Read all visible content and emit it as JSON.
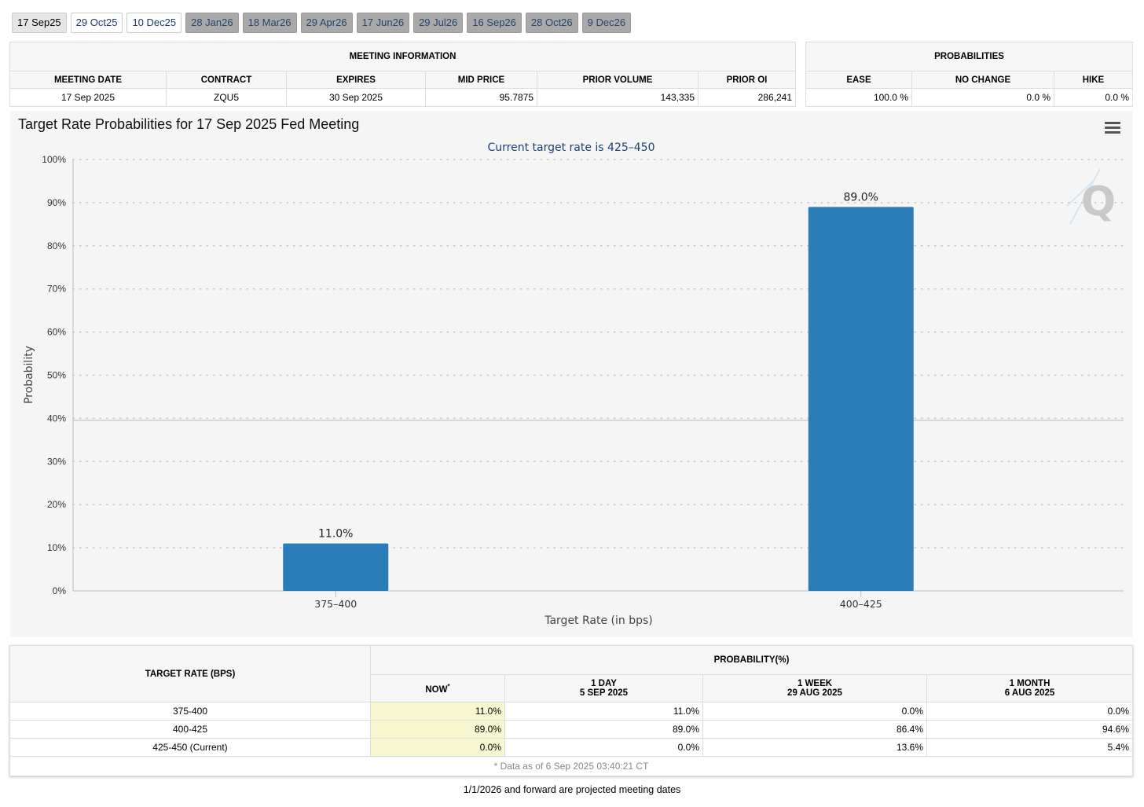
{
  "tabs": [
    {
      "label": "17 Sep25",
      "state": "active"
    },
    {
      "label": "29 Oct25",
      "state": "normal"
    },
    {
      "label": "10 Dec25",
      "state": "normal"
    },
    {
      "label": "28 Jan26",
      "state": "dim"
    },
    {
      "label": "18 Mar26",
      "state": "dim"
    },
    {
      "label": "29 Apr26",
      "state": "dim"
    },
    {
      "label": "17 Jun26",
      "state": "dim"
    },
    {
      "label": "29 Jul26",
      "state": "dim"
    },
    {
      "label": "16 Sep26",
      "state": "dim"
    },
    {
      "label": "28 Oct26",
      "state": "dim"
    },
    {
      "label": "9 Dec26",
      "state": "dim"
    }
  ],
  "meeting_info": {
    "heading": "MEETING INFORMATION",
    "columns": [
      "MEETING DATE",
      "CONTRACT",
      "EXPIRES",
      "MID PRICE",
      "PRIOR VOLUME",
      "PRIOR OI"
    ],
    "row": [
      "17 Sep 2025",
      "ZQU5",
      "30 Sep 2025",
      "95.7875",
      "143,335",
      "286,241"
    ]
  },
  "probabilities": {
    "heading": "PROBABILITIES",
    "columns": [
      "EASE",
      "NO CHANGE",
      "HIKE"
    ],
    "row": [
      "100.0 %",
      "0.0 %",
      "0.0 %"
    ]
  },
  "chart_title": "Target Rate Probabilities for 17 Sep 2025 Fed Meeting",
  "chart_data": {
    "type": "bar",
    "subtitle": "Current target rate is 425–450",
    "categories": [
      "375–400",
      "400–425"
    ],
    "values": [
      11.0,
      89.0
    ],
    "data_labels": [
      "11.0%",
      "89.0%"
    ],
    "xlabel": "Target Rate (in bps)",
    "ylabel": "Probability",
    "ylim": [
      0,
      100
    ],
    "yticks": [
      "0%",
      "10%",
      "20%",
      "30%",
      "40%",
      "50%",
      "60%",
      "70%",
      "80%",
      "90%",
      "100%"
    ],
    "bar_color": "#2a7db6",
    "grid": "dotted"
  },
  "watermark_letter": "Q",
  "history": {
    "target_rate_heading": "TARGET RATE (BPS)",
    "prob_heading": "PROBABILITY(%)",
    "columns": [
      {
        "top": "NOW",
        "sup": "*",
        "bottom": ""
      },
      {
        "top": "1 DAY",
        "bottom": "5 SEP 2025"
      },
      {
        "top": "1 WEEK",
        "bottom": "29 AUG 2025"
      },
      {
        "top": "1 MONTH",
        "bottom": "6 AUG 2025"
      }
    ],
    "rows": [
      {
        "rate": "375-400",
        "vals": [
          "11.0%",
          "11.0%",
          "0.0%",
          "0.0%"
        ]
      },
      {
        "rate": "400-425",
        "vals": [
          "89.0%",
          "89.0%",
          "86.4%",
          "94.6%"
        ]
      },
      {
        "rate": "425-450 (Current)",
        "vals": [
          "0.0%",
          "0.0%",
          "13.6%",
          "5.4%"
        ]
      }
    ],
    "data_note": "* Data as of 6 Sep 2025 03:40:21 CT"
  },
  "footer_note": "1/1/2026 and forward are projected meeting dates"
}
